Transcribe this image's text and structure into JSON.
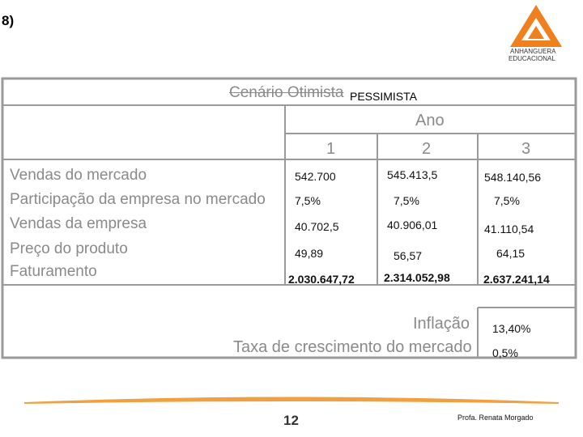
{
  "slide_label": "8)",
  "logo": {
    "line1": "ANHANGUERA",
    "line2": "EDUCACIONAL"
  },
  "table": {
    "title_struck": "Cenário Otimista",
    "title": "PESSIMISTA",
    "group_header": "Ano",
    "years": [
      "1",
      "2",
      "3"
    ],
    "rows": [
      {
        "label": "Vendas do mercado",
        "values": [
          "542.700",
          "545.413,5",
          "548.140,56"
        ]
      },
      {
        "label": "Participação da empresa no mercado",
        "values": [
          "7,5%",
          "7,5%",
          "7,5%"
        ]
      },
      {
        "label": "Vendas da empresa",
        "values": [
          "40.702,5",
          "40.906,01",
          "41.110,54"
        ]
      },
      {
        "label": "Preço do produto",
        "values": [
          "49,89",
          "56,57",
          "64,15"
        ]
      },
      {
        "label": "Faturamento",
        "values": [
          "2.030.647,72",
          "2.314.052,98",
          "2.637.241,14"
        ]
      }
    ],
    "inflation": {
      "label": "Inflação",
      "value": "13,40%"
    },
    "growth": {
      "label": "Taxa de crescimento do mercado",
      "value": "0,5%"
    }
  },
  "footer": {
    "page": "12",
    "author": "Profa. Renata Morgado"
  }
}
